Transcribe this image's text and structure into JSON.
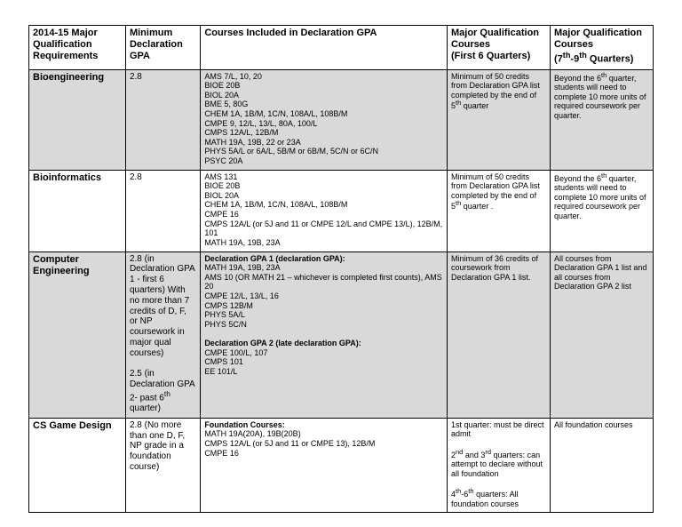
{
  "colors": {
    "shade": "#d9d9d9",
    "border": "#000000",
    "text": "#000000",
    "bg": "#ffffff"
  },
  "header": {
    "c1": "2014-15  Major Qualification Requirements",
    "c2": "Minimum Declaration GPA",
    "c3": "Courses Included in Declaration GPA",
    "c4_a": "Major Qualification Courses",
    "c4_b": "(First 6 Quarters)",
    "c5_a": "Major Qualification Courses",
    "c5_b_pre": "(7",
    "c5_b_sup1": "th",
    "c5_b_mid": "-9",
    "c5_b_sup2": "th",
    "c5_b_post": " Quarters)"
  },
  "rows": {
    "bioeng": {
      "name": "Bioengineering",
      "gpa": "2.8",
      "courses": "AMS 7/L, 10, 20\nBIOE 20B\nBIOL 20A\nBME 5, 80G\nCHEM 1A, 1B/M, 1C/N, 108A/L, 108B/M\nCMPE 9, 12/L, 13/L, 80A, 100/L\nCMPS 12A/L, 12B/M\nMATH 19A, 19B, 22 or 23A\nPHYS 5A/L or 6A/L, 5B/M or 6B/M, 5C/N or 6C/N\nPSYC 20A",
      "q1_pre": "Minimum of 50 credits from Declaration GPA list completed by the end of 5",
      "q1_sup": "th",
      "q1_post": " quarter",
      "q2_pre": "Beyond the 6",
      "q2_sup": "th",
      "q2_post": " quarter, students will need to complete 10 more units of required coursework per quarter."
    },
    "bioinf": {
      "name": "Bioinformatics",
      "gpa": "2.8",
      "courses": "AMS 131\nBIOE 20B\nBIOL 20A\nCHEM 1A, 1B/M, 1C/N, 108A/L, 108B/M\nCMPE 16\nCMPS 12A/L (or 5J and 11 or CMPE 12/L and  CMPE 13/L), 12B/M, 101\nMATH 19A, 19B, 23A",
      "q1_pre": "Minimum of 50 credits from Declaration GPA list completed by the end of 5",
      "q1_sup": "th",
      "q1_post": " quarter .",
      "q2_pre": "Beyond the 6",
      "q2_sup": "th",
      "q2_post": " quarter, students will need to complete 10 more units of required coursework per quarter."
    },
    "ce": {
      "name": "Computer Engineering",
      "gpa_p1": "2.8 (in Declaration GPA 1 - first 6 quarters) With no more than 7 credits of D, F, or NP coursework in major qual courses)",
      "gpa_p2_pre": "2.5 (in Declaration GPA 2- past 6",
      "gpa_p2_sup": "th",
      "gpa_p2_post": " quarter)",
      "c_h1": "Declaration GPA 1 (declaration GPA):",
      "c_b1": "MATH 19A, 19B, 23A\nAMS 10 (OR MATH 21 – whichever is completed first counts), AMS 20\nCMPE 12/L, 13/L, 16\nCMPS 12B/M\nPHYS 5A/L\nPHYS 5C/N",
      "c_h2": "Declaration GPA 2 (late declaration GPA):",
      "c_b2": "CMPE 100/L, 107\nCMPS 101\nEE 101/L",
      "q1": "Minimum of 36 credits of coursework from Declaration GPA 1 list.",
      "q2": "All courses from Declaration GPA 1 list and  all courses from Declaration GPA 2 list"
    },
    "csgd": {
      "name": "CS Game Design",
      "gpa": "2.8 (No more than one D, F, NP grade in a foundation course)",
      "c_h": "Foundation Courses:",
      "c_b": "MATH 19A(20A), 19B(20B)\nCMPS 12A/L (or 5J and 11 or CMPE 13), 12B/M\nCMPE 16",
      "q1_l1": "1st quarter: must be direct admit",
      "q1_l2_pre": "2",
      "q1_l2_s1": "nd",
      "q1_l2_mid": " and 3",
      "q1_l2_s2": "rd",
      "q1_l2_post": " quarters: can attempt to declare without all foundation",
      "q1_l3_pre": "4",
      "q1_l3_s1": "th",
      "q1_l3_mid": "-6",
      "q1_l3_s2": "th",
      "q1_l3_post": " quarters: All foundation courses",
      "q2": "All foundation courses"
    }
  }
}
